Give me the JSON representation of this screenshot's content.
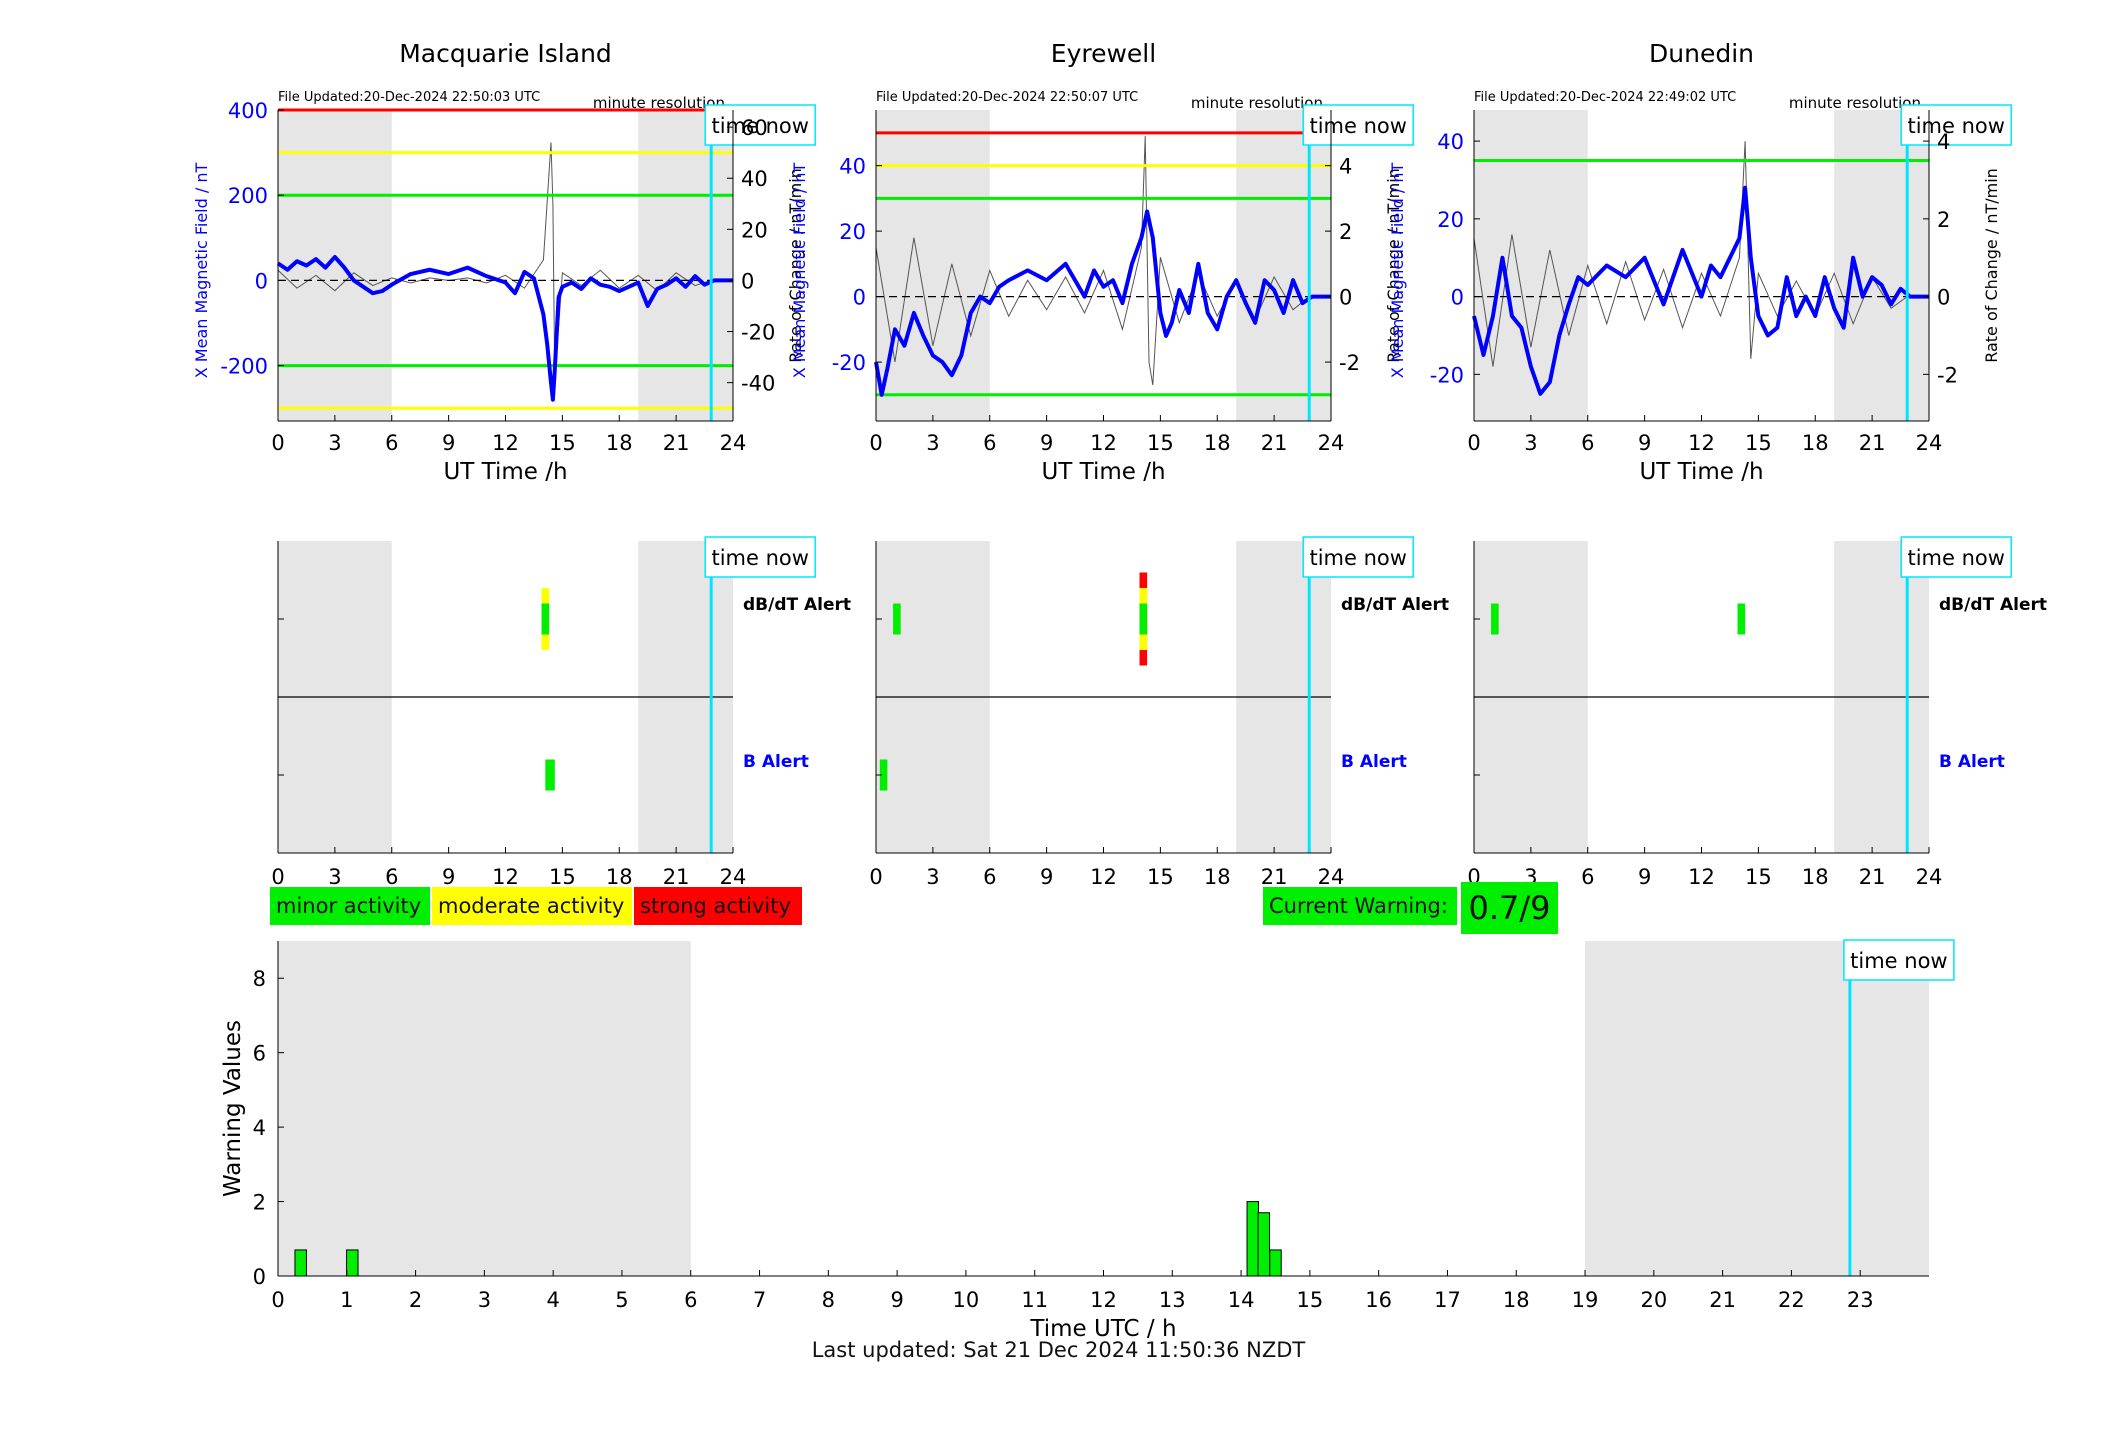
{
  "footer": {
    "last_updated": "Last updated: Sat 21 Dec 2024 11:50:36 NZDT"
  },
  "labels": {
    "time_now": "time now",
    "minute_resolution": "minute resolution",
    "dbdt_alert": "dB/dT Alert",
    "b_alert": "B Alert"
  },
  "legend": {
    "minor": "minor activity",
    "moderate": "moderate activity",
    "strong": "strong activity",
    "current_warning_label": "Current Warning:",
    "current_warning_value": "0.7/9"
  },
  "colors": {
    "minor": "#00ee00",
    "moderate": "#ffff00",
    "strong": "#ff0000",
    "field": "#0000ff",
    "rate": "#555555",
    "time_now": "#00e5ff",
    "night": "#e6e6e6"
  },
  "chart_data": [
    {
      "type": "line",
      "title": "Macquarie Island",
      "file_updated": "File Updated:20-Dec-2024 22:50:03 UTC",
      "xlabel": "UT Time /h",
      "ylabel_left": "X Mean Magnetic Field / nT",
      "ylabel_right": "Rate of Change / nT/min",
      "xlim": [
        0,
        24
      ],
      "xticks": [
        0,
        3,
        6,
        9,
        12,
        15,
        18,
        21,
        24
      ],
      "ylim_left": [
        -330,
        400
      ],
      "yticks_left": [
        -200,
        0,
        200,
        400
      ],
      "ylim_right": [
        -55,
        66.7
      ],
      "yticks_right": [
        -40,
        -20,
        0,
        20,
        40,
        60
      ],
      "thresholds": [
        {
          "value": 400,
          "color": "red"
        },
        {
          "value": 300,
          "color": "yellow"
        },
        {
          "value": 200,
          "color": "green"
        },
        {
          "value": -200,
          "color": "green"
        },
        {
          "value": -300,
          "color": "yellow"
        }
      ],
      "night_shading": [
        [
          0,
          6
        ],
        [
          19,
          24
        ]
      ],
      "time_now": 22.85,
      "series": [
        {
          "role": "mean_field",
          "x": [
            0,
            0.5,
            1,
            1.5,
            2,
            2.5,
            3,
            3.5,
            4,
            4.5,
            5,
            5.5,
            6,
            7,
            8,
            9,
            10,
            11,
            12,
            12.5,
            13,
            13.5,
            14,
            14.2,
            14.4,
            14.5,
            14.6,
            14.8,
            15,
            15.5,
            16,
            16.5,
            17,
            17.5,
            18,
            19,
            19.5,
            20,
            20.5,
            21,
            21.5,
            22,
            22.5,
            23,
            24
          ],
          "y": [
            40,
            25,
            45,
            35,
            50,
            30,
            55,
            30,
            0,
            -15,
            -30,
            -25,
            -10,
            15,
            25,
            15,
            30,
            10,
            -5,
            -30,
            20,
            5,
            -80,
            -150,
            -240,
            -280,
            -210,
            -40,
            -15,
            -5,
            -20,
            5,
            -10,
            -15,
            -25,
            -5,
            -60,
            -20,
            -10,
            5,
            -15,
            10,
            -10,
            0,
            0
          ]
        },
        {
          "role": "rate_of_change",
          "x": [
            0,
            1,
            2,
            3,
            4,
            5,
            6,
            7,
            8,
            9,
            10,
            11,
            12,
            13,
            14,
            14.4,
            14.5,
            14.6,
            15,
            16,
            17,
            18,
            19,
            20,
            21,
            22,
            22.85
          ],
          "y": [
            4,
            -3,
            2,
            -4,
            3,
            -2,
            1,
            -1,
            1,
            0,
            1,
            -1,
            2,
            -3,
            8,
            54,
            30,
            -40,
            3,
            -2,
            4,
            -3,
            2,
            -4,
            3,
            -2,
            0
          ]
        }
      ]
    },
    {
      "type": "line",
      "title": "Eyrewell",
      "file_updated": "File Updated:20-Dec-2024 22:50:07 UTC",
      "xlabel": "UT Time /h",
      "ylabel_left": "X Mean Magnetic Field / nT",
      "ylabel_right": "Rate of Change / nT/min",
      "xlim": [
        0,
        24
      ],
      "xticks": [
        0,
        3,
        6,
        9,
        12,
        15,
        18,
        21,
        24
      ],
      "ylim_left": [
        -38,
        57
      ],
      "yticks_left": [
        -20,
        0,
        20,
        40
      ],
      "ylim_right": [
        -3.8,
        5.7
      ],
      "yticks_right": [
        -2,
        0,
        2,
        4
      ],
      "thresholds": [
        {
          "value": 50,
          "color": "red"
        },
        {
          "value": 40,
          "color": "yellow"
        },
        {
          "value": 30,
          "color": "green"
        },
        {
          "value": -30,
          "color": "green"
        }
      ],
      "night_shading": [
        [
          0,
          6
        ],
        [
          19,
          24
        ]
      ],
      "time_now": 22.85,
      "series": [
        {
          "role": "mean_field",
          "x": [
            0,
            0.3,
            0.6,
            1,
            1.5,
            2,
            2.5,
            3,
            3.5,
            4,
            4.5,
            5,
            5.5,
            6,
            6.5,
            7,
            8,
            9,
            10,
            11,
            11.5,
            12,
            12.5,
            13,
            13.5,
            14,
            14.3,
            14.6,
            15,
            15.3,
            15.6,
            16,
            16.5,
            17,
            17.5,
            18,
            18.5,
            19,
            19.5,
            20,
            20.5,
            21,
            21.5,
            22,
            22.5,
            23,
            24
          ],
          "y": [
            -20,
            -30,
            -22,
            -10,
            -15,
            -5,
            -12,
            -18,
            -20,
            -24,
            -18,
            -5,
            0,
            -2,
            3,
            5,
            8,
            5,
            10,
            0,
            8,
            3,
            5,
            -2,
            10,
            18,
            26,
            18,
            -5,
            -12,
            -8,
            2,
            -5,
            10,
            -5,
            -10,
            0,
            5,
            -2,
            -8,
            5,
            2,
            -5,
            5,
            -2,
            0,
            0
          ]
        },
        {
          "role": "rate_of_change",
          "x": [
            0,
            1,
            2,
            3,
            4,
            5,
            6,
            7,
            8,
            9,
            10,
            11,
            12,
            13,
            14,
            14.2,
            14.4,
            14.6,
            15,
            16,
            17,
            18,
            19,
            20,
            21,
            22,
            22.85
          ],
          "y": [
            1.5,
            -2,
            1.8,
            -1.5,
            1,
            -1.2,
            0.8,
            -0.6,
            0.5,
            -0.4,
            0.6,
            -0.5,
            0.8,
            -1,
            1.5,
            4.9,
            -2,
            -2.7,
            1.2,
            -0.8,
            0.7,
            -0.6,
            0.5,
            -0.7,
            0.6,
            -0.4,
            0
          ]
        }
      ]
    },
    {
      "type": "line",
      "title": "Dunedin",
      "file_updated": "File Updated:20-Dec-2024 22:49:02 UTC",
      "xlabel": "UT Time /h",
      "ylabel_left": "X Mean Magnetic Field / nT",
      "ylabel_right": "Rate of Change / nT/min",
      "xlim": [
        0,
        24
      ],
      "xticks": [
        0,
        3,
        6,
        9,
        12,
        15,
        18,
        21,
        24
      ],
      "ylim_left": [
        -32,
        48
      ],
      "yticks_left": [
        -20,
        0,
        20,
        40
      ],
      "ylim_right": [
        -3.2,
        4.8
      ],
      "yticks_right": [
        -2,
        0,
        2,
        4
      ],
      "thresholds": [
        {
          "value": 35,
          "color": "green"
        }
      ],
      "night_shading": [
        [
          0,
          6
        ],
        [
          19,
          24
        ]
      ],
      "time_now": 22.85,
      "series": [
        {
          "role": "mean_field",
          "x": [
            0,
            0.5,
            1,
            1.5,
            2,
            2.5,
            3,
            3.5,
            4,
            4.5,
            5,
            5.5,
            6,
            7,
            8,
            9,
            10,
            10.5,
            11,
            12,
            12.5,
            13,
            13.5,
            14,
            14.3,
            14.6,
            15,
            15.5,
            16,
            16.5,
            17,
            17.5,
            18,
            18.5,
            19,
            19.5,
            20,
            20.5,
            21,
            21.5,
            22,
            22.5,
            23,
            24
          ],
          "y": [
            -5,
            -15,
            -5,
            10,
            -5,
            -8,
            -18,
            -25,
            -22,
            -10,
            -2,
            5,
            3,
            8,
            5,
            10,
            -2,
            5,
            12,
            0,
            8,
            5,
            10,
            15,
            28,
            10,
            -5,
            -10,
            -8,
            5,
            -5,
            0,
            -5,
            5,
            -3,
            -8,
            10,
            0,
            5,
            3,
            -2,
            2,
            0,
            0
          ]
        },
        {
          "role": "rate_of_change",
          "x": [
            0,
            1,
            2,
            3,
            4,
            5,
            6,
            7,
            8,
            9,
            10,
            11,
            12,
            13,
            14,
            14.3,
            14.6,
            15,
            16,
            17,
            18,
            19,
            20,
            21,
            22,
            22.85
          ],
          "y": [
            1.5,
            -1.8,
            1.6,
            -1.3,
            1.2,
            -1,
            0.8,
            -0.7,
            0.9,
            -0.6,
            0.7,
            -0.8,
            0.6,
            -0.5,
            1,
            4,
            -1.6,
            0.6,
            -0.5,
            0.4,
            -0.5,
            0.6,
            -0.7,
            0.5,
            -0.3,
            0
          ]
        }
      ]
    },
    {
      "type": "heatmap",
      "title": "",
      "station": "Macquarie Island",
      "xlim": [
        0,
        24
      ],
      "xticks": [
        0,
        3,
        6,
        9,
        12,
        15,
        18,
        21,
        24
      ],
      "rows": [
        "dB/dT Alert",
        "B Alert"
      ],
      "night_shading": [
        [
          0,
          6
        ],
        [
          19,
          24
        ]
      ],
      "time_now": 22.85,
      "alerts": [
        {
          "row": "dB/dT Alert",
          "start": 13.9,
          "end": 14.3,
          "level": "moderate",
          "extent": 1
        },
        {
          "row": "dB/dT Alert",
          "start": 13.9,
          "end": 14.3,
          "level": "minor",
          "extent": 0.5
        },
        {
          "row": "B Alert",
          "start": 14.1,
          "end": 14.6,
          "level": "minor",
          "extent": 0.5
        }
      ]
    },
    {
      "type": "heatmap",
      "title": "",
      "station": "Eyrewell",
      "xlim": [
        0,
        24
      ],
      "xticks": [
        0,
        3,
        6,
        9,
        12,
        15,
        18,
        21,
        24
      ],
      "rows": [
        "dB/dT Alert",
        "B Alert"
      ],
      "night_shading": [
        [
          0,
          6
        ],
        [
          19,
          24
        ]
      ],
      "time_now": 22.85,
      "alerts": [
        {
          "row": "dB/dT Alert",
          "start": 0.9,
          "end": 1.3,
          "level": "minor",
          "extent": 0.5
        },
        {
          "row": "dB/dT Alert",
          "start": 13.9,
          "end": 14.3,
          "level": "strong",
          "extent": 1.5
        },
        {
          "row": "dB/dT Alert",
          "start": 13.9,
          "end": 14.3,
          "level": "moderate",
          "extent": 1
        },
        {
          "row": "dB/dT Alert",
          "start": 13.9,
          "end": 14.3,
          "level": "minor",
          "extent": 0.5
        },
        {
          "row": "B Alert",
          "start": 0.2,
          "end": 0.6,
          "level": "minor",
          "extent": 0.5
        }
      ]
    },
    {
      "type": "heatmap",
      "title": "",
      "station": "Dunedin",
      "xlim": [
        0,
        24
      ],
      "xticks": [
        0,
        3,
        6,
        9,
        12,
        15,
        18,
        21,
        24
      ],
      "rows": [
        "dB/dT Alert",
        "B Alert"
      ],
      "night_shading": [
        [
          0,
          6
        ],
        [
          19,
          24
        ]
      ],
      "time_now": 22.85,
      "alerts": [
        {
          "row": "dB/dT Alert",
          "start": 0.9,
          "end": 1.3,
          "level": "minor",
          "extent": 0.5
        },
        {
          "row": "dB/dT Alert",
          "start": 13.9,
          "end": 14.3,
          "level": "minor",
          "extent": 0.5
        }
      ]
    },
    {
      "type": "bar",
      "title": "",
      "xlabel": "Time UTC / h",
      "ylabel": "Warning Values",
      "xlim": [
        0,
        24
      ],
      "xticks": [
        0,
        1,
        2,
        3,
        4,
        5,
        6,
        7,
        8,
        9,
        10,
        11,
        12,
        13,
        14,
        15,
        16,
        17,
        18,
        19,
        20,
        21,
        22,
        23
      ],
      "ylim": [
        0,
        9
      ],
      "yticks": [
        0,
        2,
        4,
        6,
        8
      ],
      "night_shading": [
        [
          0,
          6
        ],
        [
          19,
          24
        ]
      ],
      "time_now": 22.85,
      "bar_width": 0.167,
      "x": [
        0.33,
        1.08,
        14.17,
        14.33,
        14.5
      ],
      "values": [
        0.7,
        0.7,
        2.0,
        1.7,
        0.7
      ]
    }
  ]
}
